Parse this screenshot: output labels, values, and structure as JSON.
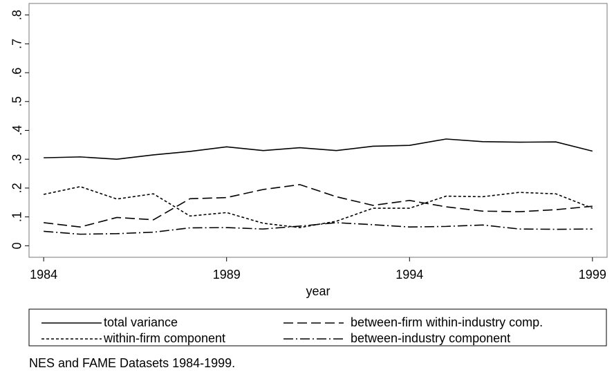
{
  "chart_data": {
    "type": "line",
    "x": [
      1984,
      1985,
      1986,
      1987,
      1988,
      1989,
      1990,
      1991,
      1992,
      1993,
      1994,
      1995,
      1996,
      1997,
      1998,
      1999
    ],
    "series": [
      {
        "name": "total variance",
        "color": "#000000",
        "values": [
          0.305,
          0.308,
          0.3,
          0.315,
          0.327,
          0.343,
          0.33,
          0.34,
          0.33,
          0.345,
          0.348,
          0.37,
          0.361,
          0.359,
          0.36,
          0.328
        ]
      },
      {
        "name": "between-firm within-industry comp.",
        "color": "#000000",
        "values": [
          0.08,
          0.065,
          0.098,
          0.09,
          0.163,
          0.167,
          0.195,
          0.212,
          0.17,
          0.14,
          0.157,
          0.135,
          0.12,
          0.118,
          0.125,
          0.137
        ]
      },
      {
        "name": "within-firm component",
        "color": "#000000",
        "values": [
          0.178,
          0.205,
          0.162,
          0.18,
          0.103,
          0.115,
          0.078,
          0.063,
          0.085,
          0.13,
          0.13,
          0.172,
          0.17,
          0.185,
          0.18,
          0.13
        ]
      },
      {
        "name": "between-industry component",
        "color": "#000000",
        "values": [
          0.05,
          0.04,
          0.042,
          0.047,
          0.062,
          0.063,
          0.058,
          0.068,
          0.08,
          0.073,
          0.065,
          0.067,
          0.072,
          0.058,
          0.057,
          0.058
        ]
      }
    ],
    "x_label": "year",
    "note": "NES and FAME Datasets 1984-1999.",
    "xlim": [
      1983.6,
      1999.4
    ],
    "xticks": [
      1984,
      1989,
      1994,
      1999
    ],
    "ylim": [
      -0.04,
      0.84
    ],
    "yticks": [
      0,
      {
        "value": 0.1,
        "label": ".1"
      },
      {
        "value": 0.2,
        "label": ".2"
      },
      {
        "value": 0.3,
        "label": ".3"
      },
      {
        "value": 0.4,
        "label": ".4"
      },
      {
        "value": 0.5,
        "label": ".5"
      },
      {
        "value": 0.6,
        "label": ".6"
      },
      {
        "value": 0.7,
        "label": ".7"
      },
      {
        "value": 0.8,
        "label": ".8"
      }
    ],
    "grid": false
  }
}
